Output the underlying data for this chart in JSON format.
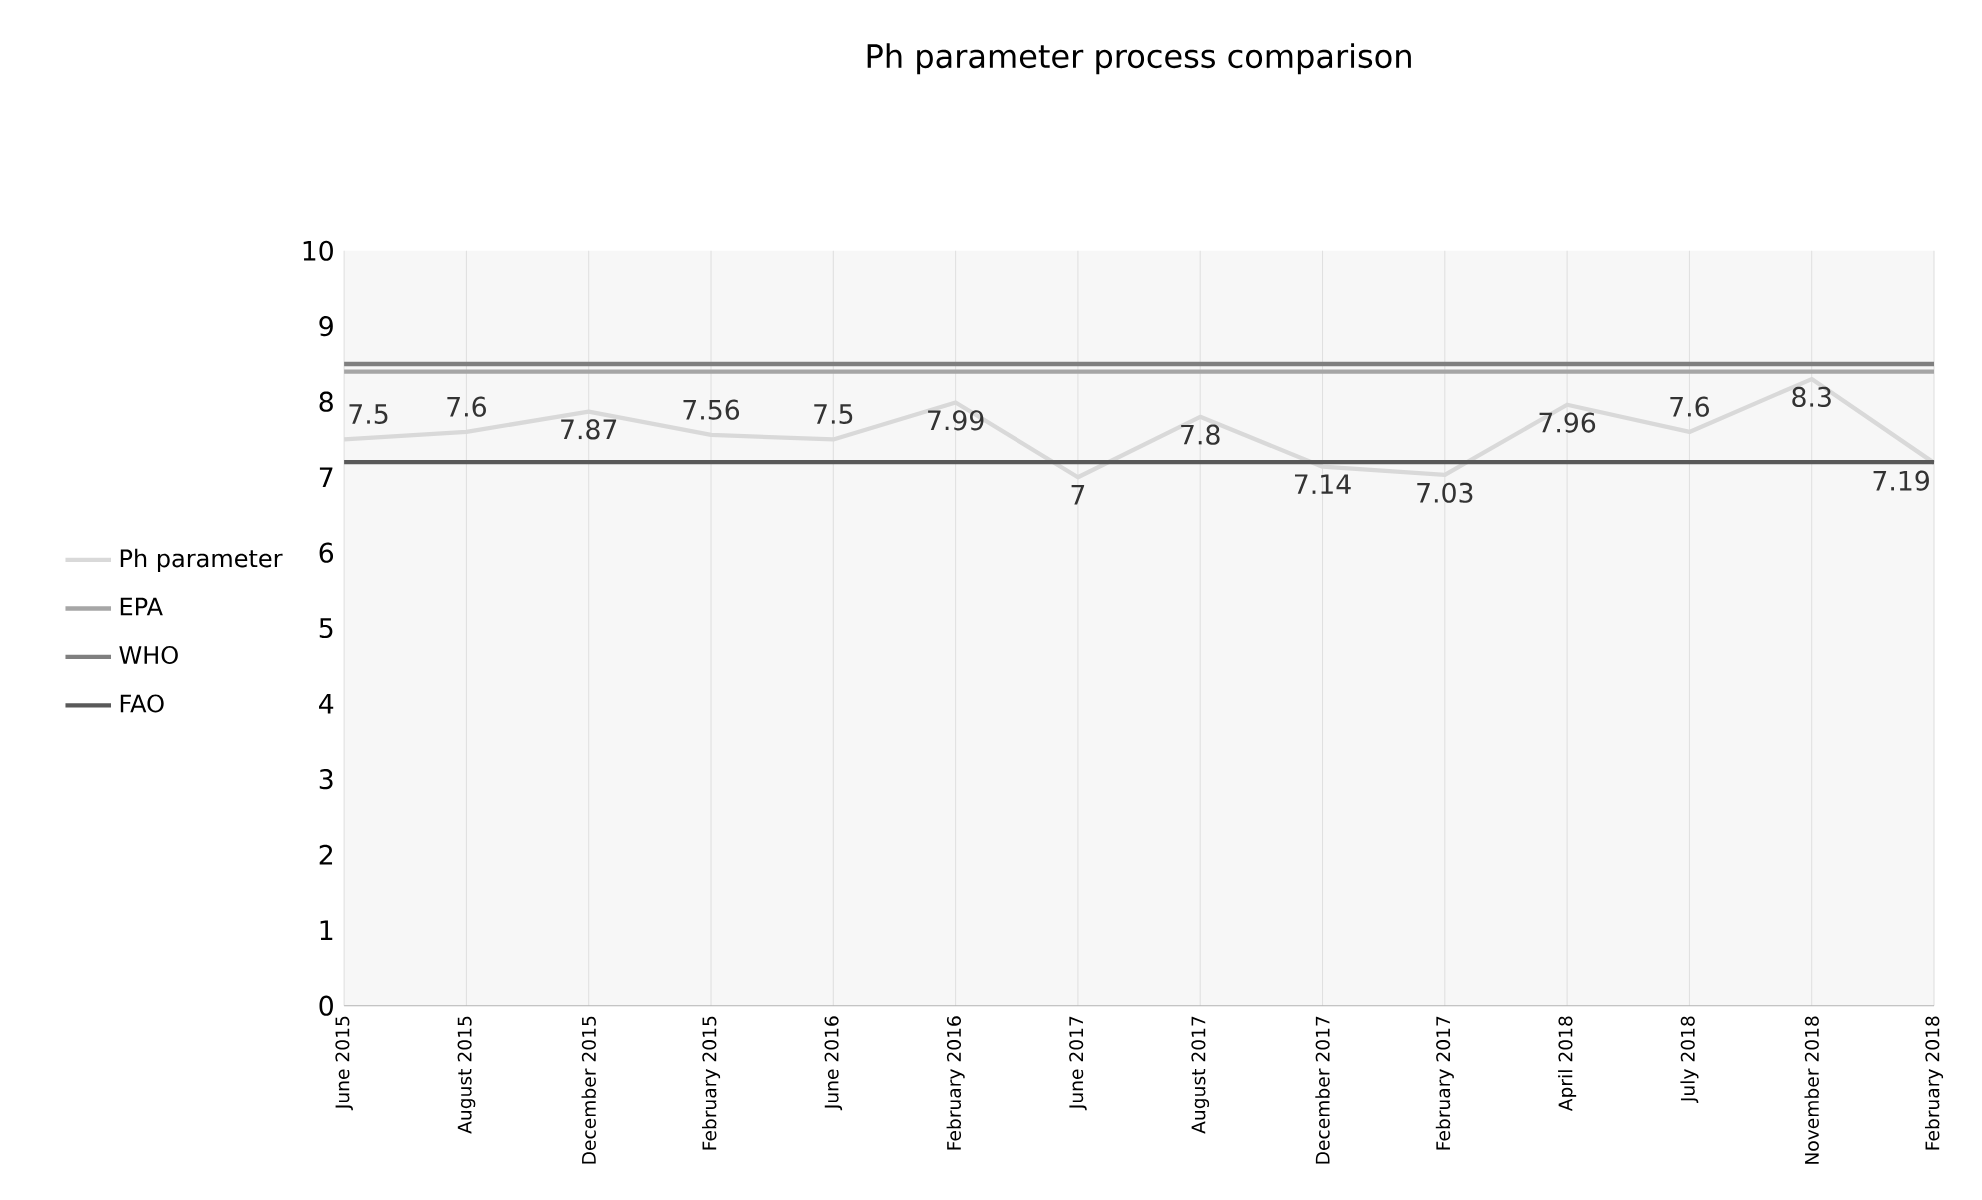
{
  "chart_data": {
    "type": "line",
    "title": "Ph parameter process comparison",
    "categories": [
      "June 2015",
      "August 2015",
      "December  2015",
      "February 2015",
      "June 2016",
      "February 2016",
      "June 2017",
      "August 2017",
      "December 2017",
      "February 2017",
      "April 2018",
      "July 2018",
      "November 2018",
      "February 2018"
    ],
    "series": [
      {
        "name": "Ph parameter",
        "color": "#d9d9d9",
        "values": [
          7.5,
          7.6,
          7.87,
          7.56,
          7.5,
          7.99,
          7,
          7.8,
          7.14,
          7.03,
          7.96,
          7.6,
          8.3,
          7.19
        ],
        "value_labels": [
          "7.5",
          "7.6",
          "7.87",
          "7.56",
          "7.5",
          "7.99",
          "7",
          "7.8",
          "7.14",
          "7.03",
          "7.96",
          "7.6",
          "8.3",
          "7.19"
        ]
      },
      {
        "name": "EPA",
        "color": "#a6a6a6",
        "values": [
          8.4,
          8.4,
          8.4,
          8.4,
          8.4,
          8.4,
          8.4,
          8.4,
          8.4,
          8.4,
          8.4,
          8.4,
          8.4,
          8.4
        ]
      },
      {
        "name": "WHO",
        "color": "#7f7f7f",
        "values": [
          8.5,
          8.5,
          8.5,
          8.5,
          8.5,
          8.5,
          8.5,
          8.5,
          8.5,
          8.5,
          8.5,
          8.5,
          8.5,
          8.5
        ]
      },
      {
        "name": "FAO",
        "color": "#595959",
        "values": [
          7.2,
          7.2,
          7.2,
          7.2,
          7.2,
          7.2,
          7.2,
          7.2,
          7.2,
          7.2,
          7.2,
          7.2,
          7.2,
          7.2
        ]
      }
    ],
    "ylim": [
      0,
      10
    ],
    "yticks": [
      0,
      1,
      2,
      3,
      4,
      5,
      6,
      7,
      8,
      9,
      10
    ],
    "grid": "x",
    "legend": "left",
    "marker": "none",
    "line_style": "solid"
  }
}
